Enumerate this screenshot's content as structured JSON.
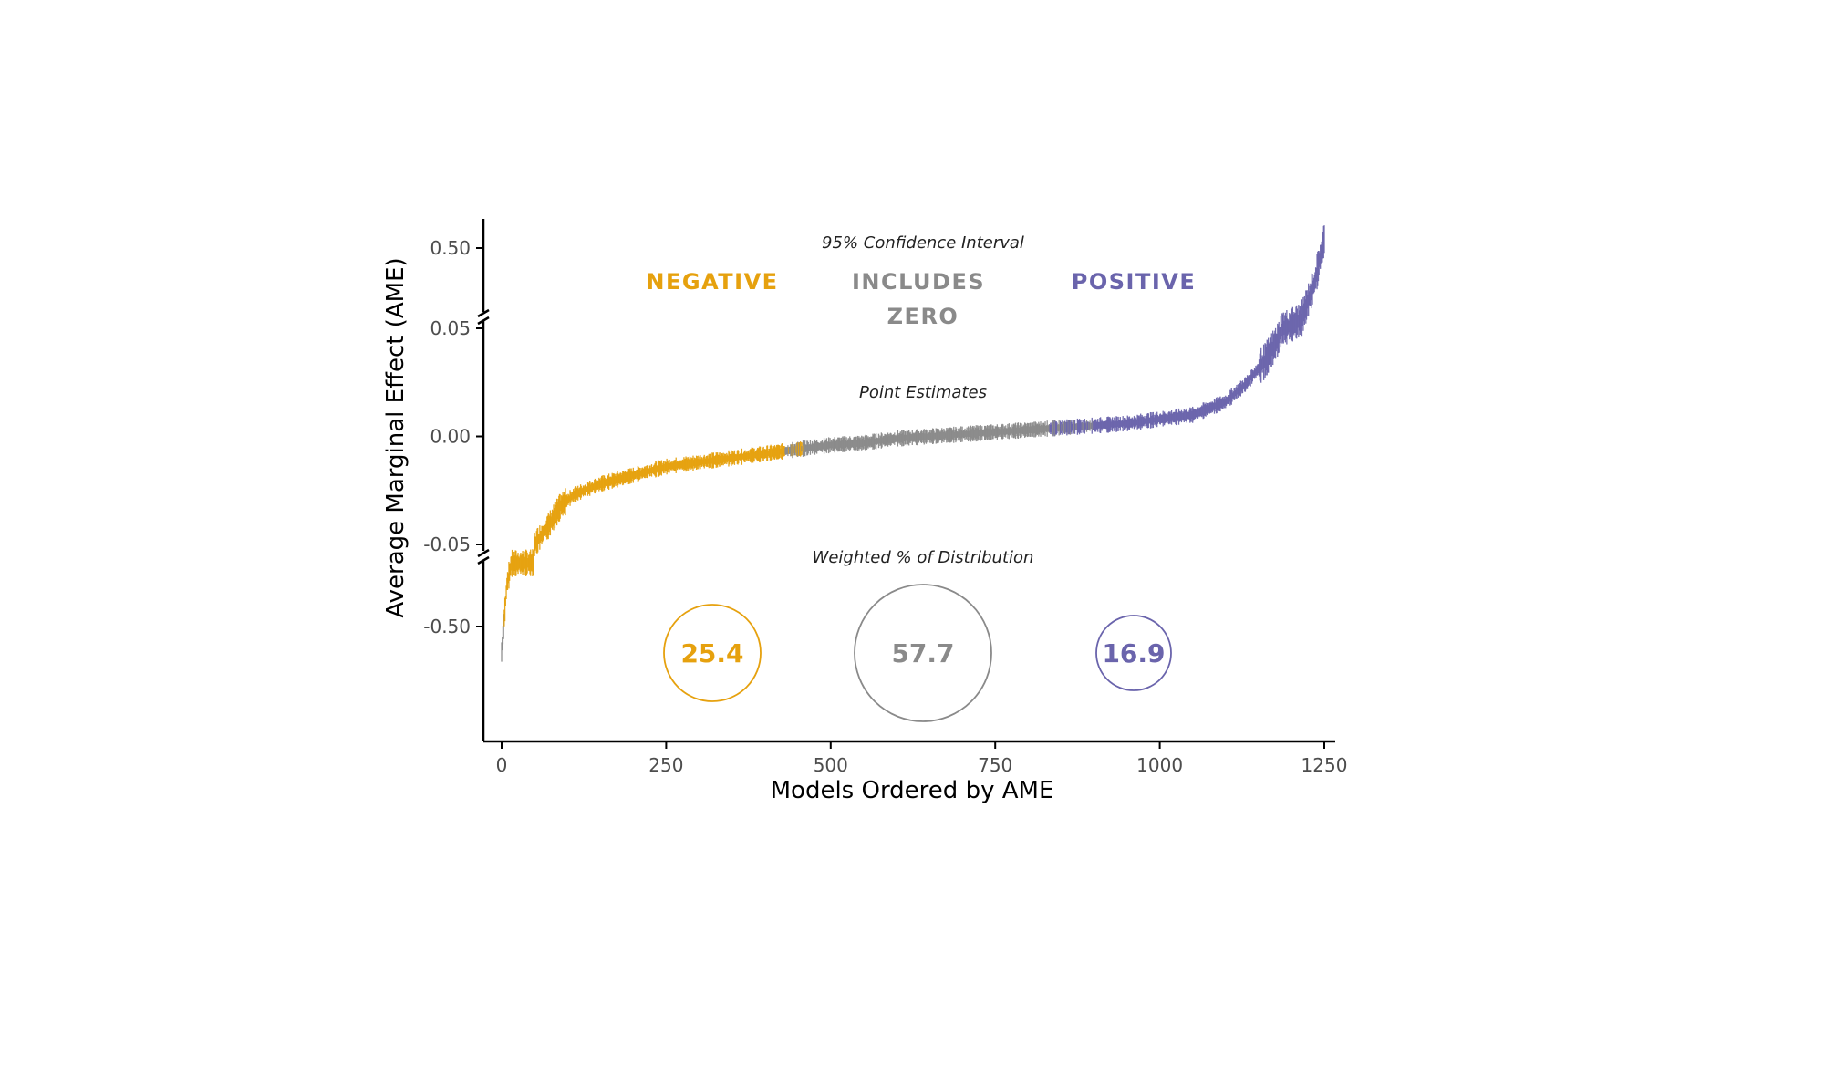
{
  "chart_data": {
    "type": "line",
    "xlabel": "Models Ordered by AME",
    "ylabel": "Average Marginal Effect (AME)",
    "x_ticks": [
      "0",
      "250",
      "500",
      "750",
      "1000",
      "1250"
    ],
    "xlim": [
      0,
      1250
    ],
    "y_ticks": [
      "0.50",
      "0.05",
      "0.00",
      "-0.05",
      "-0.50"
    ],
    "y_segments": {
      "upper": [
        0.05,
        0.5
      ],
      "middle": [
        -0.05,
        0.05
      ],
      "lower": [
        -0.7,
        -0.05
      ]
    },
    "annotations": {
      "ci_title": "95% Confidence Interval",
      "point_title": "Point Estimates",
      "dist_title": "Weighted % of Distribution"
    },
    "categories": [
      {
        "name": "NEGATIVE",
        "color": "#E6A10E",
        "x_range": [
          0,
          460
        ],
        "weighted_pct": "25.4"
      },
      {
        "name": "INCLUDES ZERO",
        "name_lines": [
          "INCLUDES",
          "ZERO"
        ],
        "color": "#8A8A8A",
        "x_range": [
          460,
          830
        ],
        "weighted_pct": "57.7"
      },
      {
        "name": "POSITIVE",
        "color": "#6A64AC",
        "x_range": [
          830,
          1250
        ],
        "weighted_pct": "16.9"
      }
    ],
    "series": [
      {
        "points": [
          [
            0,
            -0.68
          ],
          [
            3,
            -0.5
          ],
          [
            8,
            -0.2
          ],
          [
            15,
            -0.055
          ],
          [
            30,
            -0.053
          ],
          [
            50,
            -0.05
          ],
          [
            70,
            -0.042
          ],
          [
            90,
            -0.032
          ],
          [
            110,
            -0.027
          ],
          [
            150,
            -0.022
          ],
          [
            200,
            -0.018
          ],
          [
            250,
            -0.014
          ],
          [
            300,
            -0.012
          ],
          [
            350,
            -0.01
          ],
          [
            400,
            -0.008
          ],
          [
            450,
            -0.006
          ],
          [
            500,
            -0.004
          ],
          [
            550,
            -0.003
          ],
          [
            600,
            -0.001
          ],
          [
            650,
            0.0
          ],
          [
            700,
            0.001
          ],
          [
            750,
            0.002
          ],
          [
            800,
            0.003
          ],
          [
            850,
            0.004
          ],
          [
            900,
            0.005
          ],
          [
            950,
            0.006
          ],
          [
            1000,
            0.008
          ],
          [
            1050,
            0.01
          ],
          [
            1100,
            0.016
          ],
          [
            1130,
            0.024
          ],
          [
            1160,
            0.035
          ],
          [
            1180,
            0.045
          ],
          [
            1195,
            0.058
          ],
          [
            1215,
            0.1
          ],
          [
            1235,
            0.3
          ],
          [
            1250,
            0.55
          ]
        ]
      }
    ]
  }
}
